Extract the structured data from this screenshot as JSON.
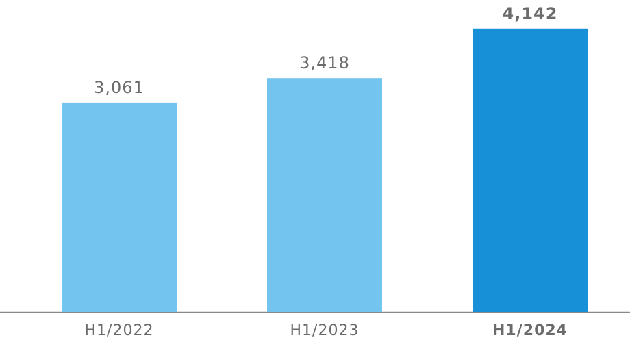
{
  "chart_data": {
    "type": "bar",
    "categories": [
      "H1/2022",
      "H1/2023",
      "H1/2024"
    ],
    "values": [
      3061,
      3418,
      4142
    ],
    "value_labels": [
      "3,061",
      "3,418",
      "4,142"
    ],
    "colors": [
      "#73c4ef",
      "#73c4ef",
      "#1890d8"
    ]
  }
}
